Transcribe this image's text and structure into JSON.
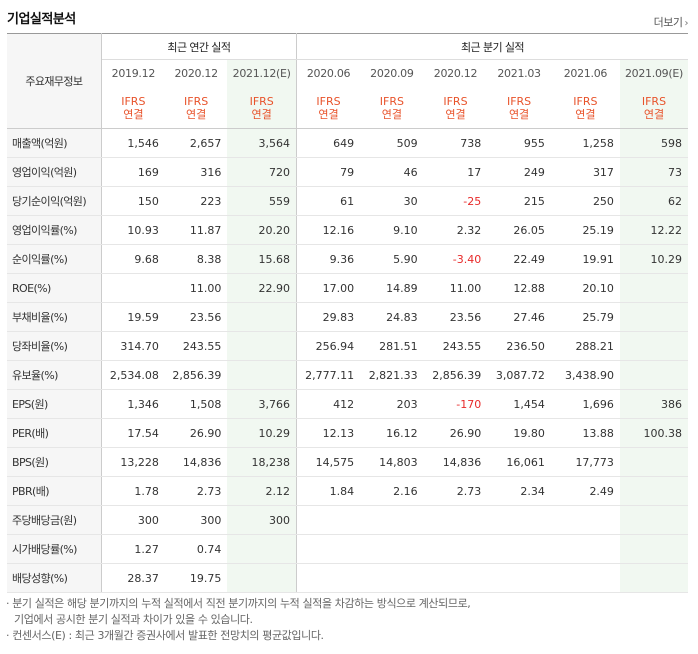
{
  "title": "기업실적분석",
  "more": "더보기",
  "corner": "주요재무정보",
  "groups": {
    "annual": "최근 연간 실적",
    "quarter": "최근 분기 실적"
  },
  "periods": [
    "2019.12",
    "2020.12",
    "2021.12(E)",
    "2020.06",
    "2020.09",
    "2020.12",
    "2021.03",
    "2021.06",
    "2021.09(E)"
  ],
  "ifrs": {
    "top": "IFRS",
    "bottom": "연결"
  },
  "rows": [
    {
      "label": "매출액(억원)",
      "values": [
        "1,546",
        "2,657",
        "3,564",
        "649",
        "509",
        "738",
        "955",
        "1,258",
        "598"
      ]
    },
    {
      "label": "영업이익(억원)",
      "values": [
        "169",
        "316",
        "720",
        "79",
        "46",
        "17",
        "249",
        "317",
        "73"
      ]
    },
    {
      "label": "당기순이익(억원)",
      "values": [
        "150",
        "223",
        "559",
        "61",
        "30",
        "-25",
        "215",
        "250",
        "62"
      ]
    },
    {
      "label": "영업이익률(%)",
      "values": [
        "10.93",
        "11.87",
        "20.20",
        "12.16",
        "9.10",
        "2.32",
        "26.05",
        "25.19",
        "12.22"
      ]
    },
    {
      "label": "순이익률(%)",
      "values": [
        "9.68",
        "8.38",
        "15.68",
        "9.36",
        "5.90",
        "-3.40",
        "22.49",
        "19.91",
        "10.29"
      ]
    },
    {
      "label": "ROE(%)",
      "values": [
        "",
        "11.00",
        "22.90",
        "17.00",
        "14.89",
        "11.00",
        "12.88",
        "20.10",
        ""
      ]
    },
    {
      "label": "부채비율(%)",
      "values": [
        "19.59",
        "23.56",
        "",
        "29.83",
        "24.83",
        "23.56",
        "27.46",
        "25.79",
        ""
      ]
    },
    {
      "label": "당좌비율(%)",
      "values": [
        "314.70",
        "243.55",
        "",
        "256.94",
        "281.51",
        "243.55",
        "236.50",
        "288.21",
        ""
      ]
    },
    {
      "label": "유보율(%)",
      "values": [
        "2,534.08",
        "2,856.39",
        "",
        "2,777.11",
        "2,821.33",
        "2,856.39",
        "3,087.72",
        "3,438.90",
        ""
      ]
    },
    {
      "label": "EPS(원)",
      "values": [
        "1,346",
        "1,508",
        "3,766",
        "412",
        "203",
        "-170",
        "1,454",
        "1,696",
        "386"
      ]
    },
    {
      "label": "PER(배)",
      "values": [
        "17.54",
        "26.90",
        "10.29",
        "12.13",
        "16.12",
        "26.90",
        "19.80",
        "13.88",
        "100.38"
      ]
    },
    {
      "label": "BPS(원)",
      "values": [
        "13,228",
        "14,836",
        "18,238",
        "14,575",
        "14,803",
        "14,836",
        "16,061",
        "17,773",
        ""
      ]
    },
    {
      "label": "PBR(배)",
      "values": [
        "1.78",
        "2.73",
        "2.12",
        "1.84",
        "2.16",
        "2.73",
        "2.34",
        "2.49",
        ""
      ]
    },
    {
      "label": "주당배당금(원)",
      "values": [
        "300",
        "300",
        "300",
        "",
        "",
        "",
        "",
        "",
        ""
      ]
    },
    {
      "label": "시가배당률(%)",
      "values": [
        "1.27",
        "0.74",
        "",
        "",
        "",
        "",
        "",
        "",
        ""
      ]
    },
    {
      "label": "배당성향(%)",
      "values": [
        "28.37",
        "19.75",
        "",
        "",
        "",
        "",
        "",
        "",
        ""
      ]
    }
  ],
  "notes": [
    "· 분기 실적은 해당 분기까지의 누적 실적에서 직전 분기까지의 누적 실적을 차감하는 방식으로 계산되므로,",
    "기업에서 공시한 분기 실적과 차이가 있을 수 있습니다.",
    "· 컨센서스(E) : 최근 3개월간 증권사에서 발표한 전망치의 평균값입니다."
  ],
  "colors": {
    "ifrs": "#e8532b",
    "negative": "#e82a2a",
    "estimate_bg": "#f1f8f1",
    "header_bg": "#f6f6f6"
  }
}
